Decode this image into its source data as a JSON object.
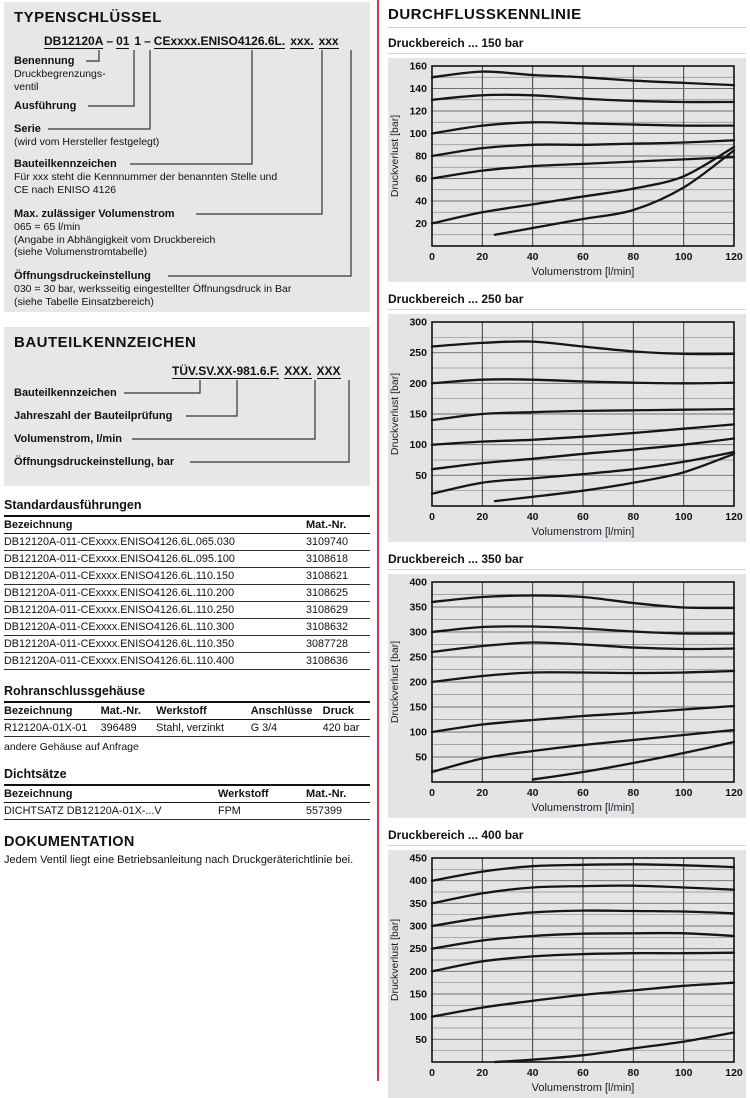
{
  "colors": {
    "divider": "#d4394b",
    "panel_gray": "#e7e7e7",
    "chart_gray": "#e4e4e4"
  },
  "typenschluessel": {
    "title": "TYPENSCHLÜSSEL",
    "code_segments": [
      "DB12120A",
      "–",
      "01",
      "1",
      "–",
      "CExxxx.ENISO4126.6L.",
      "xxx.",
      "xxx"
    ],
    "labels": [
      {
        "title": "Benennung",
        "lines": [
          "Druckbegrenzungs-",
          "ventil"
        ]
      },
      {
        "title": "Ausführung",
        "lines": []
      },
      {
        "title": "Serie",
        "lines": [
          "(wird vom Hersteller festgelegt)"
        ]
      },
      {
        "title": "Bauteilkennzeichen",
        "lines": [
          "Für xxx steht die Kennnummer der benannten Stelle und",
          "CE nach ENISO 4126"
        ]
      },
      {
        "title": "Max. zulässiger Volumenstrom",
        "lines": [
          "065 = 65 l/min",
          "(Angabe in Abhängigkeit vom Druckbereich",
          "(siehe Volumenstromtabelle)"
        ]
      },
      {
        "title": "Öffnungsdruckeinstellung",
        "lines": [
          "030 = 30 bar, werksseitig eingestellter Öffnungsdruck in Bar",
          "(siehe Tabelle Einsatzbereich)"
        ]
      }
    ]
  },
  "bauteilkennzeichen": {
    "title": "BAUTEILKENNZEICHEN",
    "code_segments": [
      "TÜV.SV.XX-981.6.F.",
      "XXX.",
      "XXX"
    ],
    "labels": [
      "Bauteilkennzeichen",
      "Jahreszahl der Bauteilprüfung",
      "Volumenstrom, l/min",
      "Öffnungsdruckeinstellung, bar"
    ]
  },
  "standard": {
    "title": "Standardausführungen",
    "headers": [
      "Bezeichnung",
      "Mat.-Nr."
    ],
    "rows": [
      [
        "DB12120A-011-CExxxx.ENISO4126.6L.065.030",
        "3109740"
      ],
      [
        "DB12120A-011-CExxxx.ENISO4126.6L.095.100",
        "3108618"
      ],
      [
        "DB12120A-011-CExxxx.ENISO4126.6L.110.150",
        "3108621"
      ],
      [
        "DB12120A-011-CExxxx.ENISO4126.6L.110.200",
        "3108625"
      ],
      [
        "DB12120A-011-CExxxx.ENISO4126.6L.110.250",
        "3108629"
      ],
      [
        "DB12120A-011-CExxxx.ENISO4126.6L.110.300",
        "3108632"
      ],
      [
        "DB12120A-011-CExxxx.ENISO4126.6L.110.350",
        "3087728"
      ],
      [
        "DB12120A-011-CExxxx.ENISO4126.6L.110.400",
        "3108636"
      ]
    ]
  },
  "rohranschluss": {
    "title": "Rohranschlussgehäuse",
    "headers": [
      "Bezeichnung",
      "Mat.-Nr.",
      "Werkstoff",
      "Anschlüsse",
      "Druck"
    ],
    "rows": [
      [
        "R12120A-01X-01",
        "396489",
        "Stahl, verzinkt",
        "G 3/4",
        "420 bar"
      ]
    ],
    "note": "andere Gehäuse auf Anfrage"
  },
  "dichtsaetze": {
    "title": "Dichtsätze",
    "headers": [
      "Bezeichnung",
      "Werkstoff",
      "Mat.-Nr."
    ],
    "rows": [
      [
        "DICHTSATZ DB12120A-01X-...V",
        "FPM",
        "557399"
      ]
    ]
  },
  "dokumentation": {
    "title": "DOKUMENTATION",
    "text": "Jedem Ventil liegt eine Betriebsanleitung nach Druckgeräterichtlinie bei."
  },
  "durchfluss": {
    "title": "DURCHFLUSSKENNLINIE"
  },
  "chart_data": [
    {
      "type": "line",
      "title": "Druckbereich ... 150 bar",
      "xlabel": "Volumenstrom [l/min]",
      "ylabel": "Druckverlust [bar]",
      "xlim": [
        0,
        120
      ],
      "ylim": [
        0,
        160
      ],
      "xticks": [
        0,
        20,
        40,
        60,
        80,
        100,
        120
      ],
      "yticks": [
        20,
        40,
        60,
        80,
        100,
        120,
        140,
        160
      ],
      "y_minor_step": 10,
      "grid": true,
      "legend": "none",
      "series": [
        {
          "name": "kennlinie-150",
          "x": [
            0,
            20,
            40,
            60,
            80,
            100,
            120
          ],
          "y": [
            150,
            155,
            152,
            150,
            147,
            145,
            143
          ]
        },
        {
          "name": "kennlinie-130",
          "x": [
            0,
            20,
            40,
            60,
            80,
            100,
            120
          ],
          "y": [
            130,
            134,
            134,
            131,
            129,
            128,
            128
          ]
        },
        {
          "name": "kennlinie-100",
          "x": [
            0,
            20,
            40,
            60,
            80,
            100,
            120
          ],
          "y": [
            100,
            107,
            110,
            109,
            108,
            107,
            107
          ]
        },
        {
          "name": "kennlinie-80",
          "x": [
            0,
            20,
            40,
            60,
            80,
            100,
            120
          ],
          "y": [
            80,
            87,
            90,
            90,
            91,
            92,
            94
          ]
        },
        {
          "name": "kennlinie-60",
          "x": [
            0,
            20,
            40,
            60,
            80,
            100,
            120
          ],
          "y": [
            60,
            67,
            71,
            73,
            75,
            77,
            79
          ]
        },
        {
          "name": "kennlinie-20",
          "x": [
            0,
            20,
            40,
            60,
            80,
            100,
            120
          ],
          "y": [
            20,
            30,
            37,
            44,
            51,
            62,
            88
          ]
        },
        {
          "name": "kennlinie-min",
          "x": [
            25,
            40,
            60,
            80,
            100,
            120
          ],
          "y": [
            10,
            16,
            24,
            32,
            52,
            85
          ]
        }
      ]
    },
    {
      "type": "line",
      "title": "Druckbereich ... 250 bar",
      "xlabel": "Volumenstrom [l/min]",
      "ylabel": "Druckverlust [bar]",
      "xlim": [
        0,
        120
      ],
      "ylim": [
        0,
        300
      ],
      "xticks": [
        0,
        20,
        40,
        60,
        80,
        100,
        120
      ],
      "yticks": [
        50,
        100,
        150,
        200,
        250,
        300
      ],
      "y_minor_step": 25,
      "grid": true,
      "legend": "none",
      "series": [
        {
          "name": "kennlinie-260",
          "x": [
            0,
            20,
            40,
            60,
            80,
            100,
            120
          ],
          "y": [
            260,
            266,
            268,
            260,
            252,
            248,
            248
          ]
        },
        {
          "name": "kennlinie-200",
          "x": [
            0,
            20,
            40,
            60,
            80,
            100,
            120
          ],
          "y": [
            200,
            206,
            206,
            203,
            201,
            200,
            201
          ]
        },
        {
          "name": "kennlinie-140",
          "x": [
            0,
            20,
            40,
            60,
            80,
            100,
            120
          ],
          "y": [
            140,
            150,
            153,
            155,
            156,
            157,
            158
          ]
        },
        {
          "name": "kennlinie-100",
          "x": [
            0,
            20,
            40,
            60,
            80,
            100,
            120
          ],
          "y": [
            100,
            105,
            108,
            113,
            119,
            126,
            133
          ]
        },
        {
          "name": "kennlinie-60",
          "x": [
            0,
            20,
            40,
            60,
            80,
            100,
            120
          ],
          "y": [
            60,
            70,
            77,
            85,
            92,
            100,
            110
          ]
        },
        {
          "name": "kennlinie-20",
          "x": [
            0,
            20,
            40,
            60,
            80,
            100,
            120
          ],
          "y": [
            20,
            38,
            45,
            52,
            60,
            72,
            88
          ]
        },
        {
          "name": "kennlinie-min",
          "x": [
            25,
            40,
            60,
            80,
            100,
            120
          ],
          "y": [
            8,
            15,
            25,
            38,
            55,
            85
          ]
        }
      ]
    },
    {
      "type": "line",
      "title": "Druckbereich ... 350 bar",
      "xlabel": "Volumenstrom [l/min]",
      "ylabel": "Druckverlust [bar]",
      "xlim": [
        0,
        120
      ],
      "ylim": [
        0,
        400
      ],
      "xticks": [
        0,
        20,
        40,
        60,
        80,
        100,
        120
      ],
      "yticks": [
        50,
        100,
        150,
        200,
        250,
        300,
        350,
        400
      ],
      "y_minor_step": 25,
      "grid": true,
      "legend": "none",
      "series": [
        {
          "name": "kennlinie-360",
          "x": [
            0,
            20,
            40,
            60,
            80,
            100,
            120
          ],
          "y": [
            360,
            370,
            373,
            370,
            358,
            349,
            348
          ]
        },
        {
          "name": "kennlinie-300",
          "x": [
            0,
            20,
            40,
            60,
            80,
            100,
            120
          ],
          "y": [
            300,
            310,
            311,
            307,
            301,
            297,
            297
          ]
        },
        {
          "name": "kennlinie-260",
          "x": [
            0,
            20,
            40,
            60,
            80,
            100,
            120
          ],
          "y": [
            260,
            272,
            279,
            275,
            269,
            266,
            267
          ]
        },
        {
          "name": "kennlinie-200",
          "x": [
            0,
            20,
            40,
            60,
            80,
            100,
            120
          ],
          "y": [
            200,
            212,
            219,
            219,
            218,
            219,
            222
          ]
        },
        {
          "name": "kennlinie-100",
          "x": [
            0,
            20,
            40,
            60,
            80,
            100,
            120
          ],
          "y": [
            100,
            115,
            124,
            132,
            138,
            145,
            152
          ]
        },
        {
          "name": "kennlinie-20",
          "x": [
            0,
            20,
            40,
            60,
            80,
            100,
            120
          ],
          "y": [
            20,
            47,
            62,
            74,
            84,
            94,
            104
          ]
        },
        {
          "name": "kennlinie-min",
          "x": [
            40,
            60,
            80,
            100,
            120
          ],
          "y": [
            5,
            20,
            38,
            58,
            80
          ]
        }
      ]
    },
    {
      "type": "line",
      "title": "Druckbereich ... 400 bar",
      "xlabel": "Volumenstrom [l/min]",
      "ylabel": "Druckverlust [bar]",
      "xlim": [
        0,
        120
      ],
      "ylim": [
        0,
        450
      ],
      "xticks": [
        0,
        20,
        40,
        60,
        80,
        100,
        120
      ],
      "yticks": [
        50,
        100,
        150,
        200,
        250,
        300,
        350,
        400,
        450
      ],
      "y_minor_step": 25,
      "grid": true,
      "legend": "none",
      "series": [
        {
          "name": "kennlinie-400",
          "x": [
            0,
            20,
            40,
            60,
            80,
            100,
            120
          ],
          "y": [
            400,
            420,
            432,
            435,
            436,
            434,
            430
          ]
        },
        {
          "name": "kennlinie-350",
          "x": [
            0,
            20,
            40,
            60,
            80,
            100,
            120
          ],
          "y": [
            350,
            372,
            385,
            388,
            389,
            385,
            380
          ]
        },
        {
          "name": "kennlinie-300",
          "x": [
            0,
            20,
            40,
            60,
            80,
            100,
            120
          ],
          "y": [
            300,
            318,
            330,
            334,
            333,
            332,
            328
          ]
        },
        {
          "name": "kennlinie-250",
          "x": [
            0,
            20,
            40,
            60,
            80,
            100,
            120
          ],
          "y": [
            250,
            268,
            278,
            283,
            284,
            284,
            278
          ]
        },
        {
          "name": "kennlinie-200",
          "x": [
            0,
            20,
            40,
            60,
            80,
            100,
            120
          ],
          "y": [
            200,
            222,
            233,
            238,
            240,
            240,
            241
          ]
        },
        {
          "name": "kennlinie-100",
          "x": [
            0,
            20,
            40,
            60,
            80,
            100,
            120
          ],
          "y": [
            100,
            120,
            135,
            148,
            158,
            168,
            175
          ]
        },
        {
          "name": "kennlinie-min",
          "x": [
            25,
            40,
            60,
            80,
            100,
            120
          ],
          "y": [
            0,
            5,
            15,
            30,
            45,
            65
          ]
        }
      ]
    }
  ]
}
